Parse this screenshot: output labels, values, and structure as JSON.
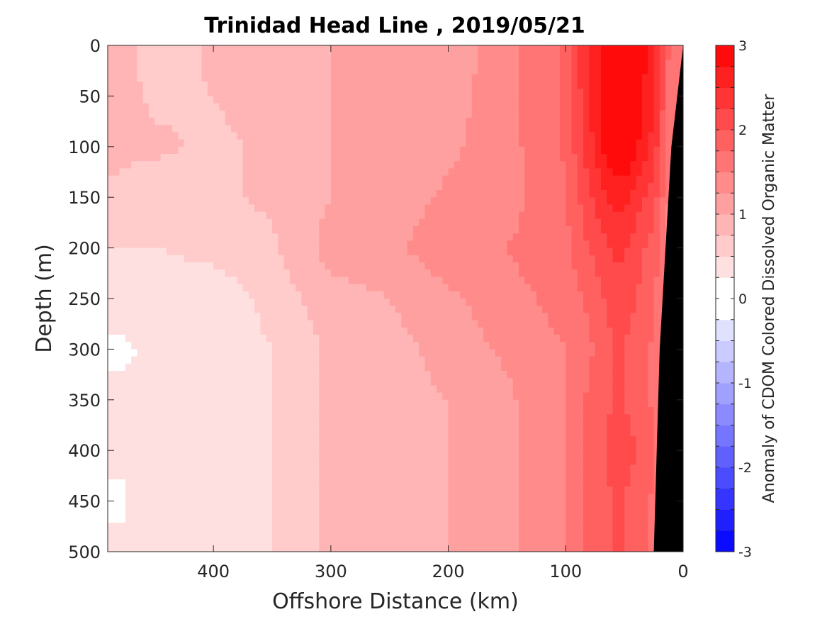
{
  "chart_data": {
    "type": "heatmap",
    "title": "Trinidad Head Line , 2019/05/21",
    "xlabel": "Offshore Distance (km)",
    "ylabel": "Depth (m)",
    "xlim": [
      490,
      0
    ],
    "ylim": [
      500,
      0
    ],
    "x_axis_reversed": true,
    "y_axis_reversed": true,
    "x_ticks": [
      400,
      300,
      200,
      100,
      0
    ],
    "y_ticks": [
      0,
      50,
      100,
      150,
      200,
      250,
      300,
      350,
      400,
      450,
      500
    ],
    "colorbar": {
      "label": "Anomaly of CDOM Colored Dissolved Organic Matter",
      "range": [
        -3,
        3
      ],
      "ticks": [
        3,
        2,
        1,
        0,
        -1,
        -2,
        -3
      ],
      "levels": 24,
      "low_color": "#0000ff",
      "mid_color": "#ffffff",
      "high_color": "#ff0000"
    },
    "bathymetry": {
      "color": "#000000",
      "depth": [
        0,
        100,
        300,
        500
      ],
      "distance": [
        0,
        10,
        20,
        25
      ]
    },
    "field": {
      "distance_km": [
        480,
        450,
        400,
        350,
        300,
        250,
        200,
        150,
        100,
        80,
        60,
        50,
        40,
        25,
        10
      ],
      "depth_m": [
        0,
        100,
        150,
        200,
        250,
        300,
        350,
        400,
        450,
        500
      ],
      "anomaly": [
        [
          0.9,
          0.6,
          0.8,
          0.9,
          1.0,
          1.0,
          1.1,
          1.4,
          1.8,
          2.6,
          3.0,
          3.0,
          3.0,
          2.6,
          1.6
        ],
        [
          0.8,
          0.8,
          0.7,
          0.8,
          1.0,
          1.0,
          1.2,
          1.4,
          1.8,
          2.4,
          3.0,
          3.0,
          2.8,
          2.4,
          1.5
        ],
        [
          0.7,
          0.6,
          0.7,
          0.8,
          1.0,
          1.1,
          1.3,
          1.4,
          1.7,
          2.2,
          2.6,
          2.6,
          2.4,
          2.1,
          1.4
        ],
        [
          0.5,
          0.5,
          0.6,
          0.7,
          1.1,
          1.2,
          1.4,
          1.5,
          1.7,
          2.0,
          2.3,
          2.3,
          2.1,
          1.9,
          1.3
        ],
        [
          0.4,
          0.3,
          0.3,
          0.6,
          0.9,
          1.0,
          1.2,
          1.4,
          1.6,
          1.8,
          2.1,
          2.1,
          2.0,
          1.8,
          1.3
        ],
        [
          0.2,
          0.3,
          0.3,
          0.5,
          0.8,
          0.9,
          1.1,
          1.3,
          1.5,
          1.7,
          2.0,
          2.0,
          1.9,
          1.7,
          1.3
        ],
        [
          0.3,
          0.4,
          0.3,
          0.5,
          0.8,
          0.9,
          1.0,
          1.2,
          1.5,
          1.8,
          2.0,
          2.0,
          1.9,
          1.7,
          1.3
        ],
        [
          0.3,
          0.4,
          0.4,
          0.5,
          0.8,
          0.9,
          1.0,
          1.2,
          1.5,
          1.8,
          2.1,
          2.1,
          2.0,
          1.8,
          1.3
        ],
        [
          0.2,
          0.4,
          0.4,
          0.5,
          0.8,
          0.9,
          1.0,
          1.2,
          1.5,
          1.8,
          2.0,
          2.0,
          1.9,
          1.7,
          1.3
        ],
        [
          0.3,
          0.4,
          0.4,
          0.5,
          0.8,
          0.9,
          1.0,
          1.2,
          1.5,
          1.8,
          2.0,
          2.0,
          1.9,
          1.7,
          1.3
        ]
      ]
    }
  }
}
